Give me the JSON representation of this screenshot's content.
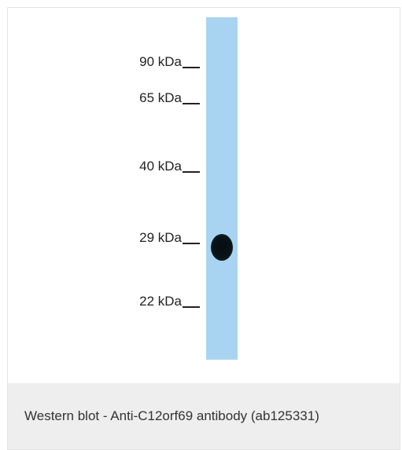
{
  "blot": {
    "markers": [
      {
        "label": "90 kDa"
      },
      {
        "label": "65 kDa"
      },
      {
        "label": "40 kDa"
      },
      {
        "label": "29 kDa"
      },
      {
        "label": "22 kDa"
      }
    ],
    "lane_color": "#a9d4f1",
    "band_color": "#081317"
  },
  "caption": {
    "text": "Western blot - Anti-C12orf69 antibody (ab125331)"
  }
}
